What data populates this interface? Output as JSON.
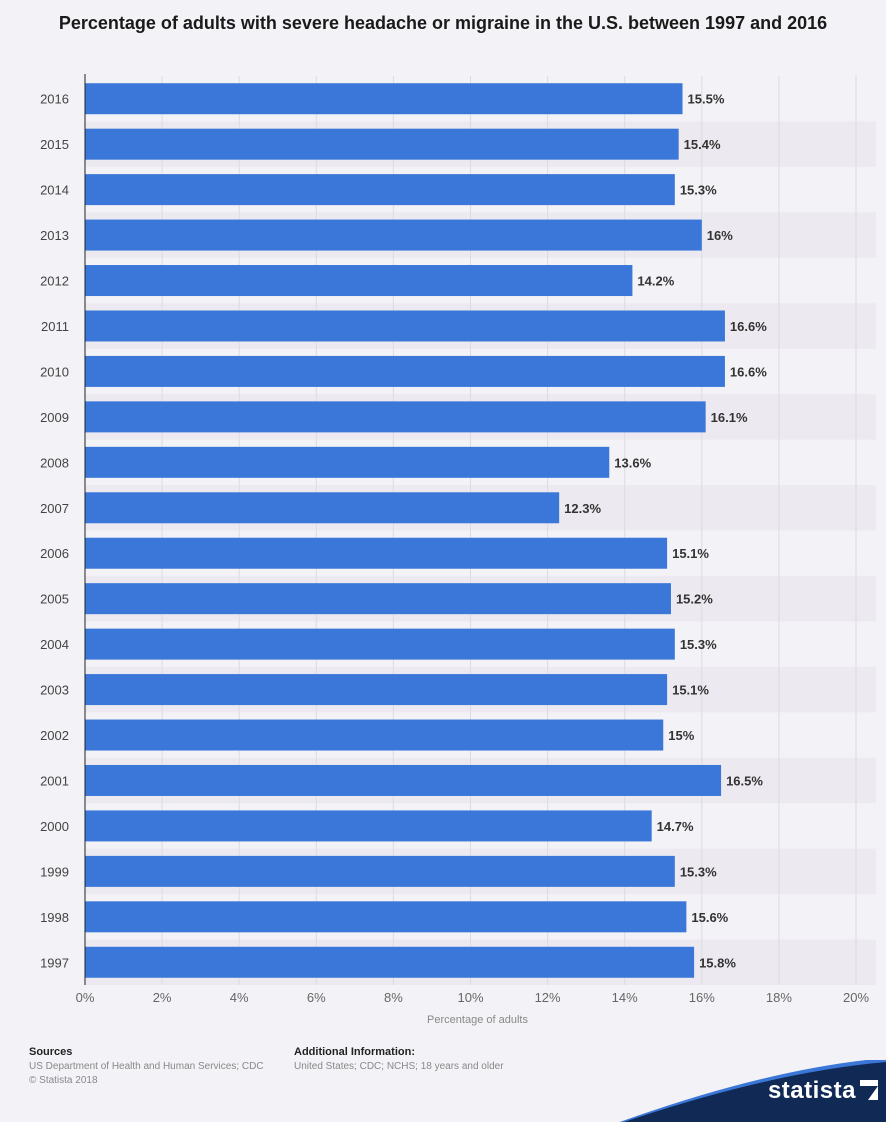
{
  "title": "Percentage of adults with severe headache or migraine in the U.S. between 1997 and 2016",
  "footer": {
    "sources_heading": "Sources",
    "sources_text": "US Department of Health and Human Services; CDC",
    "copyright": "© Statista 2018",
    "info_heading": "Additional Information:",
    "info_text": "United States; CDC; NCHS; 18 years and older"
  },
  "brand": {
    "name": "statista"
  },
  "colors": {
    "bar": "#3a77d9",
    "background": "#f3f2f6",
    "band": "#eceaf0"
  },
  "chart_data": {
    "type": "bar",
    "orientation": "horizontal",
    "categories": [
      "2016",
      "2015",
      "2014",
      "2013",
      "2012",
      "2011",
      "2010",
      "2009",
      "2008",
      "2007",
      "2006",
      "2005",
      "2004",
      "2003",
      "2002",
      "2001",
      "2000",
      "1999",
      "1998",
      "1997"
    ],
    "values": [
      15.5,
      15.4,
      15.3,
      16,
      14.2,
      16.6,
      16.6,
      16.1,
      13.6,
      12.3,
      15.1,
      15.2,
      15.3,
      15.1,
      15,
      16.5,
      14.7,
      15.3,
      15.6,
      15.8
    ],
    "data_labels": [
      "15.5%",
      "15.4%",
      "15.3%",
      "16%",
      "14.2%",
      "16.6%",
      "16.6%",
      "16.1%",
      "13.6%",
      "12.3%",
      "15.1%",
      "15.2%",
      "15.3%",
      "15.1%",
      "15%",
      "16.5%",
      "14.7%",
      "15.3%",
      "15.6%",
      "15.8%"
    ],
    "xlabel": "Percentage of adults",
    "ylabel": "",
    "xlim": [
      0,
      20
    ],
    "xticks": [
      0,
      2,
      4,
      6,
      8,
      10,
      12,
      14,
      16,
      18,
      20
    ],
    "xtick_labels": [
      "0%",
      "2%",
      "4%",
      "6%",
      "8%",
      "10%",
      "12%",
      "14%",
      "16%",
      "18%",
      "20%"
    ],
    "grid": true,
    "legend": "none"
  }
}
